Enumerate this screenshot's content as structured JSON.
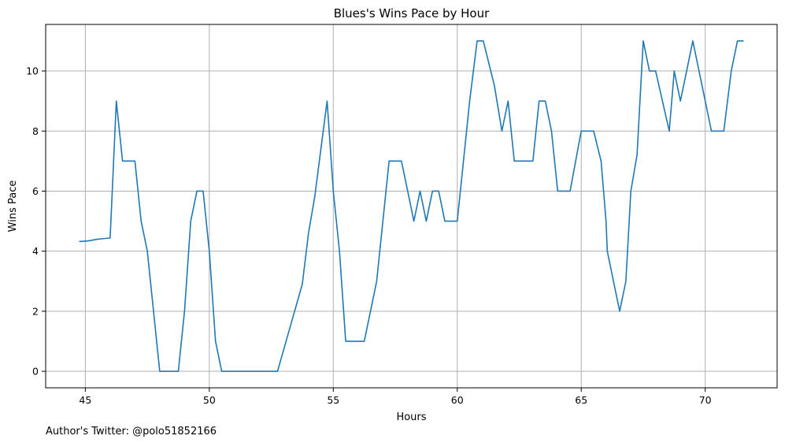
{
  "chart_data": {
    "type": "line",
    "title": "Blues's Wins Pace by Hour",
    "xlabel": "Hours",
    "ylabel": "Wins Pace",
    "xlim": [
      43.4,
      72.9
    ],
    "ylim": [
      -0.55,
      11.55
    ],
    "xticks": [
      45,
      50,
      55,
      60,
      65,
      70
    ],
    "yticks": [
      0,
      2,
      4,
      6,
      8,
      10
    ],
    "grid": true,
    "series": [
      {
        "color": "#1f77b4",
        "points": [
          [
            44.75,
            4.32
          ],
          [
            45.1,
            4.34
          ],
          [
            45.5,
            4.4
          ],
          [
            46.0,
            4.44
          ],
          [
            46.25,
            9.0
          ],
          [
            46.5,
            7.0
          ],
          [
            47.0,
            7.0
          ],
          [
            47.25,
            5.0
          ],
          [
            47.5,
            4.0
          ],
          [
            48.0,
            0.0
          ],
          [
            48.75,
            0.0
          ],
          [
            49.0,
            2.0
          ],
          [
            49.25,
            5.0
          ],
          [
            49.5,
            6.0
          ],
          [
            49.75,
            6.0
          ],
          [
            50.0,
            4.0
          ],
          [
            50.25,
            1.0
          ],
          [
            50.5,
            0.0
          ],
          [
            52.75,
            0.0
          ],
          [
            53.25,
            1.45
          ],
          [
            53.75,
            2.9
          ],
          [
            54.0,
            4.6
          ],
          [
            54.25,
            5.8
          ],
          [
            54.75,
            9.0
          ],
          [
            55.0,
            6.0
          ],
          [
            55.25,
            4.0
          ],
          [
            55.5,
            1.0
          ],
          [
            56.25,
            1.0
          ],
          [
            56.75,
            3.0
          ],
          [
            57.25,
            7.0
          ],
          [
            57.75,
            7.0
          ],
          [
            58.25,
            5.0
          ],
          [
            58.5,
            6.0
          ],
          [
            58.75,
            5.0
          ],
          [
            59.0,
            6.0
          ],
          [
            59.25,
            6.0
          ],
          [
            59.5,
            5.0
          ],
          [
            60.0,
            5.0
          ],
          [
            60.25,
            7.0
          ],
          [
            60.5,
            9.0
          ],
          [
            60.8,
            11.0
          ],
          [
            61.05,
            11.0
          ],
          [
            61.5,
            9.5
          ],
          [
            61.8,
            8.0
          ],
          [
            62.05,
            9.0
          ],
          [
            62.3,
            7.0
          ],
          [
            63.05,
            7.0
          ],
          [
            63.3,
            9.0
          ],
          [
            63.55,
            9.0
          ],
          [
            63.8,
            8.0
          ],
          [
            64.05,
            6.0
          ],
          [
            64.55,
            6.0
          ],
          [
            65.0,
            8.0
          ],
          [
            65.5,
            8.0
          ],
          [
            65.8,
            7.0
          ],
          [
            66.0,
            5.0
          ],
          [
            66.05,
            4.0
          ],
          [
            66.55,
            2.0
          ],
          [
            66.8,
            3.0
          ],
          [
            67.0,
            6.0
          ],
          [
            67.25,
            7.2
          ],
          [
            67.5,
            11.0
          ],
          [
            67.75,
            10.0
          ],
          [
            68.0,
            10.0
          ],
          [
            68.55,
            8.0
          ],
          [
            68.75,
            10.0
          ],
          [
            69.0,
            9.0
          ],
          [
            69.5,
            11.0
          ],
          [
            70.25,
            8.0
          ],
          [
            70.75,
            8.0
          ],
          [
            71.05,
            10.0
          ],
          [
            71.3,
            11.0
          ],
          [
            71.55,
            11.0
          ]
        ]
      }
    ]
  },
  "footer": {
    "credit": "Author's Twitter: @polo51852166"
  }
}
